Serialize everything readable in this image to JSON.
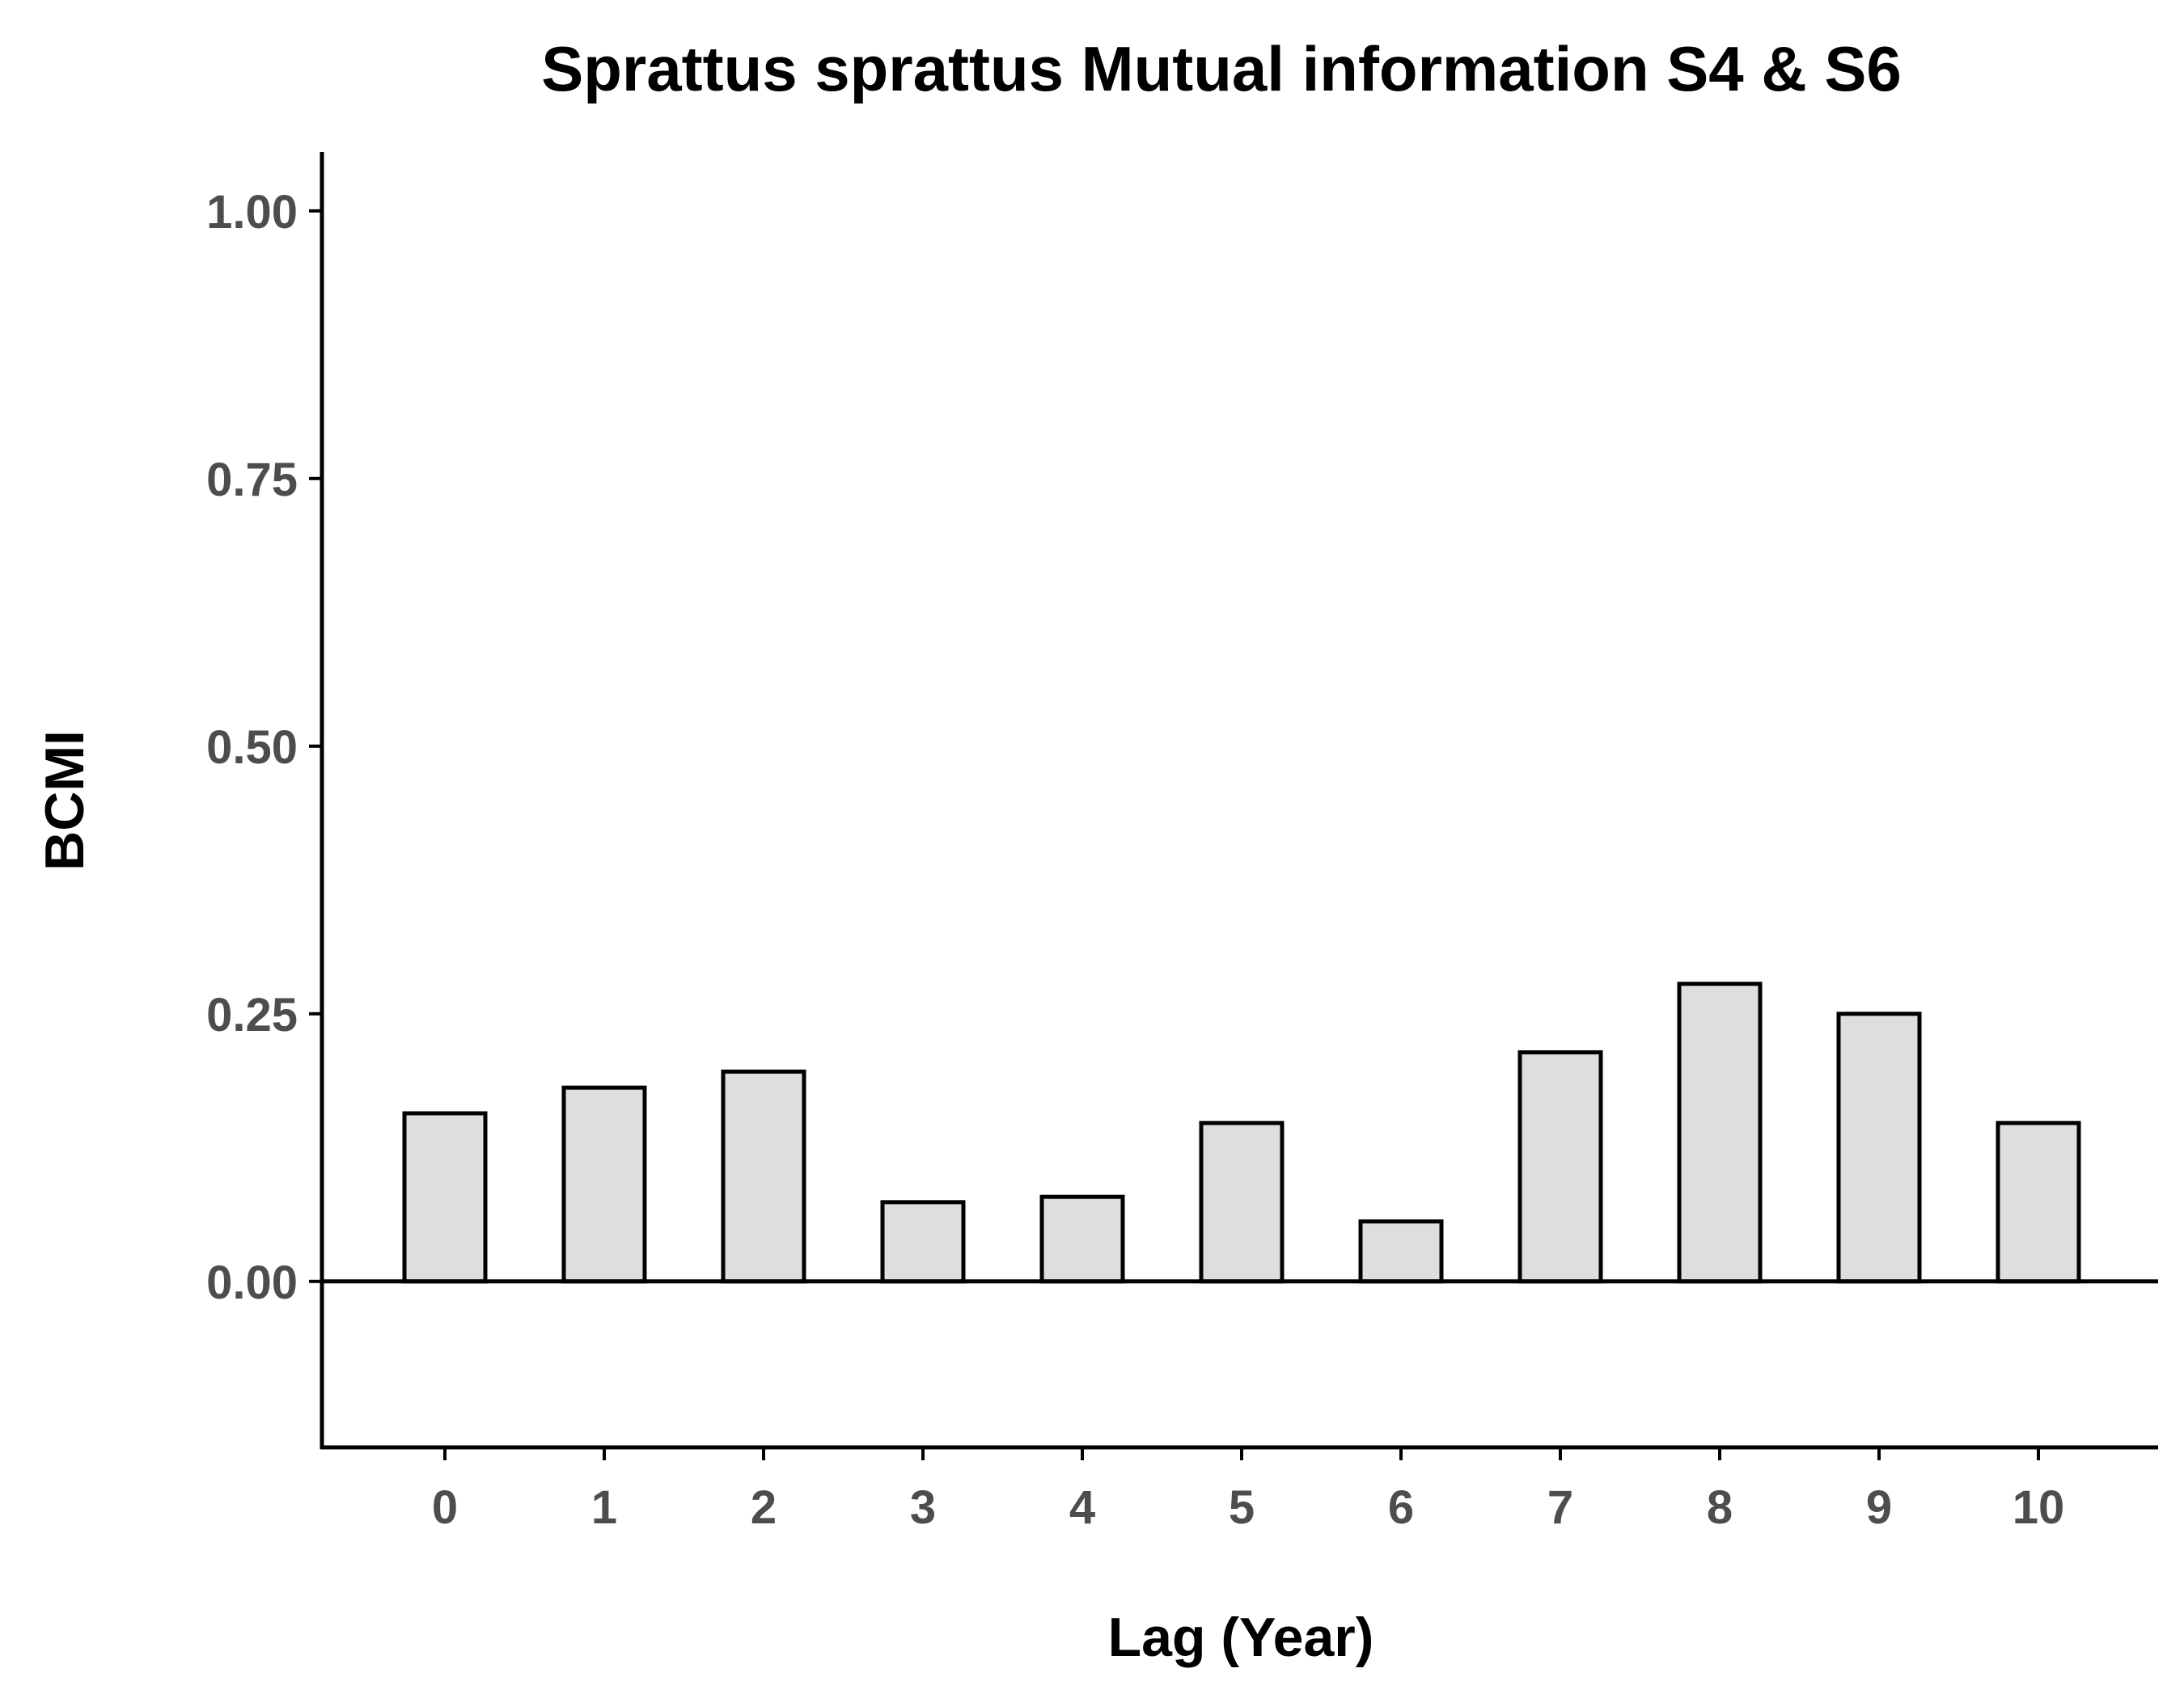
{
  "chart_data": {
    "type": "bar",
    "title": "Sprattus sprattus Mutual information S4 & S6",
    "xlabel": "Lag (Year)",
    "ylabel": "BCMI",
    "categories": [
      "0",
      "1",
      "2",
      "3",
      "4",
      "5",
      "6",
      "7",
      "8",
      "9",
      "10"
    ],
    "values": [
      0.157,
      0.181,
      0.196,
      0.074,
      0.079,
      0.148,
      0.056,
      0.214,
      0.278,
      0.25,
      0.148
    ],
    "ylim": [
      -0.155,
      1.055
    ],
    "yticks": [
      0.0,
      0.25,
      0.5,
      0.75,
      1.0
    ],
    "ytick_labels": [
      "0.00",
      "0.25",
      "0.50",
      "0.75",
      "1.00"
    ],
    "reference_line_y": 0,
    "grid": false,
    "legend": "none",
    "colors": {
      "bar_fill": "#dedede",
      "bar_stroke": "#000000",
      "tick_text": "#4d4d4d",
      "axis": "#000000"
    }
  }
}
